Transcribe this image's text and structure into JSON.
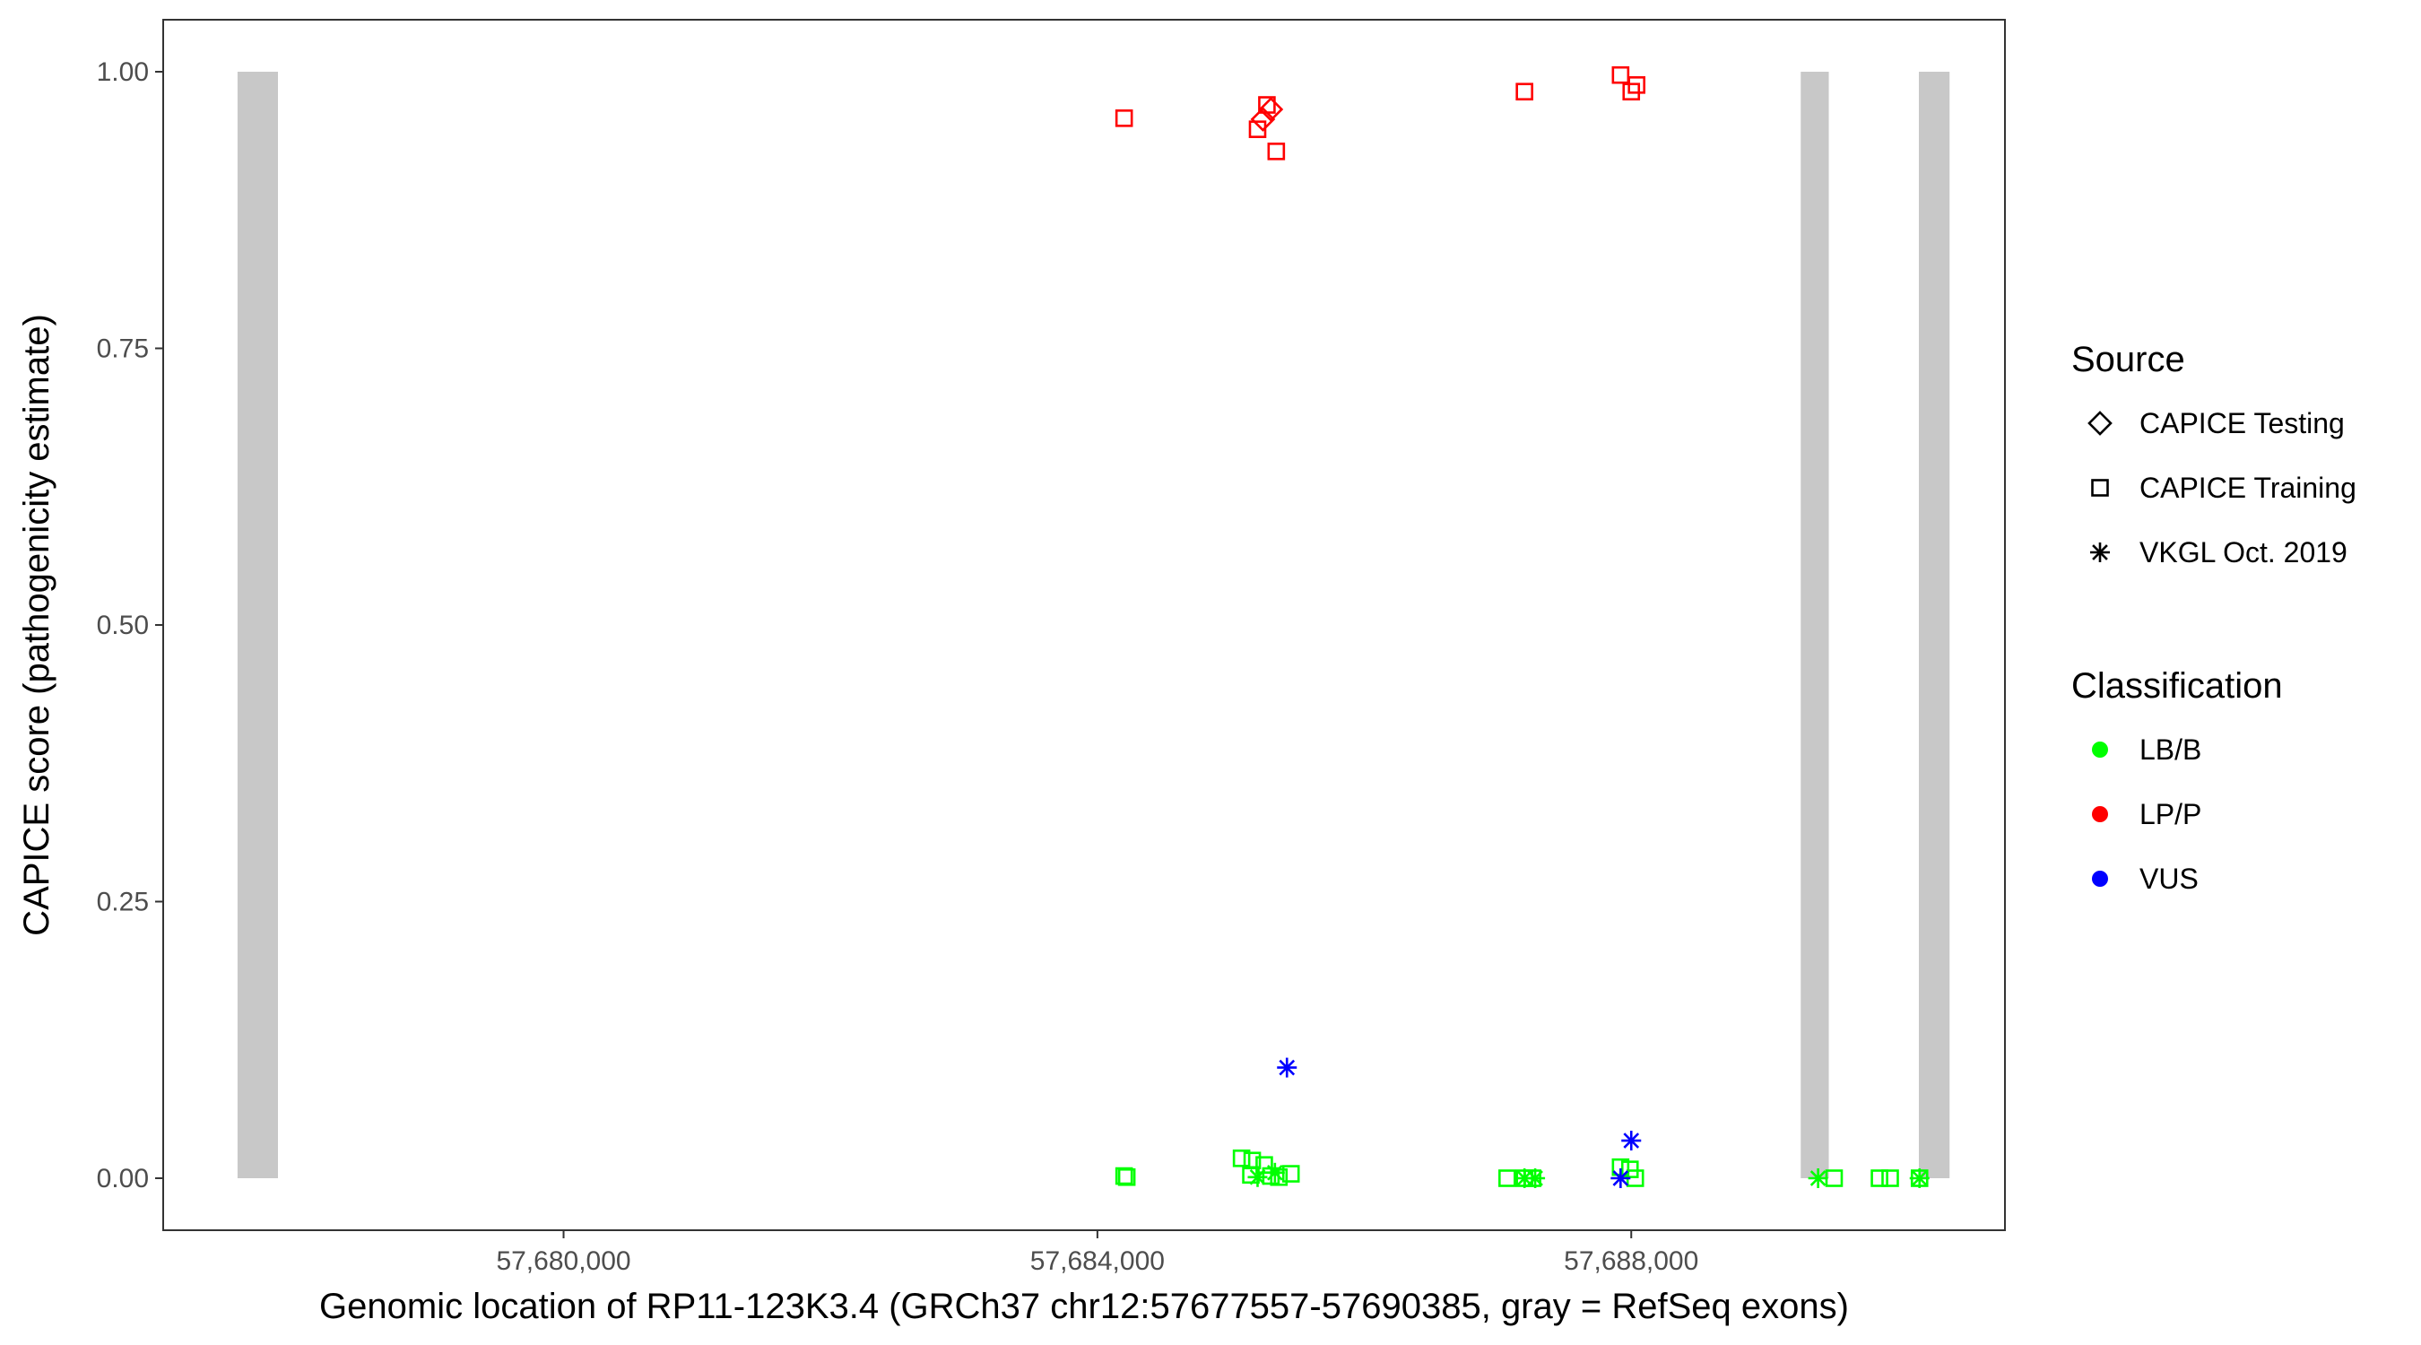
{
  "chart_data": {
    "type": "scatter",
    "xlabel": "Genomic location of RP11-123K3.4 (GRCh37 chr12:57677557-57690385, gray = RefSeq exons)",
    "ylabel": "CAPICE score (pathogenicity estimate)",
    "xlim": [
      57677000,
      57690800
    ],
    "ylim": [
      -0.047,
      1.047
    ],
    "x_ticks": [
      57680000,
      57684000,
      57688000
    ],
    "x_tick_labels": [
      "57,680,000",
      "57,684,000",
      "57,688,000"
    ],
    "y_ticks": [
      0,
      0.25,
      0.5,
      0.75,
      1
    ],
    "y_tick_labels": [
      "0.00",
      "0.25",
      "0.50",
      "0.75",
      "1.00"
    ],
    "grid": false,
    "exons": [
      {
        "start": 57677557,
        "end": 57677860
      },
      {
        "start": 57689270,
        "end": 57689480
      },
      {
        "start": 57690155,
        "end": 57690385
      }
    ],
    "legend": {
      "position": "right",
      "source_title": "Source",
      "source_items": [
        {
          "label": "CAPICE Testing",
          "shape": "diamond"
        },
        {
          "label": "CAPICE Training",
          "shape": "square"
        },
        {
          "label": "VKGL Oct. 2019",
          "shape": "asterisk"
        }
      ],
      "class_title": "Classification",
      "class_items": [
        {
          "label": "LB/B",
          "color": "#00ff00"
        },
        {
          "label": "LP/P",
          "color": "#ff0000"
        },
        {
          "label": "VUS",
          "color": "#0000ff"
        }
      ]
    },
    "colors": {
      "LB/B": "#00ff00",
      "LP/P": "#ff0000",
      "VUS": "#0000ff",
      "exon": "#c8c8c8"
    },
    "series": [
      {
        "name": "CAPICE Testing",
        "class": "LP/P",
        "shape": "diamond",
        "points": [
          [
            57685300,
            0.966
          ],
          [
            57685240,
            0.957
          ]
        ]
      },
      {
        "name": "CAPICE Training",
        "class": "LP/P",
        "shape": "square",
        "points": [
          [
            57684200,
            0.958
          ],
          [
            57685200,
            0.948
          ],
          [
            57685270,
            0.97
          ],
          [
            57685340,
            0.928
          ],
          [
            57687200,
            0.982
          ],
          [
            57687920,
            0.997
          ],
          [
            57688000,
            0.982
          ],
          [
            57688040,
            0.988
          ]
        ]
      },
      {
        "name": "CAPICE Training",
        "class": "LB/B",
        "shape": "square",
        "points": [
          [
            57684200,
            0.002
          ],
          [
            57684220,
            0.001
          ],
          [
            57685080,
            0.018
          ],
          [
            57685160,
            0.016
          ],
          [
            57685250,
            0.012
          ],
          [
            57685150,
            0.003
          ],
          [
            57685300,
            0.002
          ],
          [
            57685360,
            0.001
          ],
          [
            57685450,
            0.004
          ],
          [
            57687070,
            0.0
          ],
          [
            57687200,
            0.0
          ],
          [
            57687260,
            0.0
          ],
          [
            57687920,
            0.01
          ],
          [
            57687990,
            0.008
          ],
          [
            57688030,
            0.0
          ],
          [
            57689520,
            0.0
          ],
          [
            57689860,
            0.0
          ],
          [
            57689940,
            0.0
          ],
          [
            57690160,
            0.0
          ]
        ]
      },
      {
        "name": "VKGL Oct. 2019",
        "class": "LB/B",
        "shape": "asterisk",
        "points": [
          [
            57685200,
            0.001
          ],
          [
            57685330,
            0.005
          ],
          [
            57687200,
            0.0
          ],
          [
            57687280,
            0.0
          ],
          [
            57689400,
            0.0
          ],
          [
            57690160,
            0.0
          ]
        ]
      },
      {
        "name": "VKGL Oct. 2019",
        "class": "VUS",
        "shape": "asterisk",
        "points": [
          [
            57685420,
            0.1
          ],
          [
            57688000,
            0.034
          ],
          [
            57687920,
            0.0
          ]
        ]
      }
    ]
  }
}
